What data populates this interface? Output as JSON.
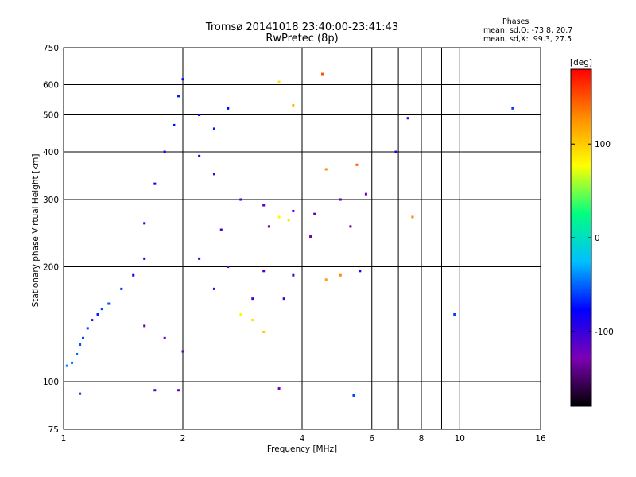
{
  "header": {
    "title_line1": "Tromsø 20141018 23:40:00-23:41:43",
    "title_line2": "RwPretec (8p)",
    "phases_heading": "Phases",
    "phases_o": "mean, sd,O: -73.8, 20.7",
    "phases_x": "mean, sd,X:  99.3, 27.5"
  },
  "chart_data": {
    "type": "scatter",
    "xlabel": "Frequency [MHz]",
    "ylabel": "Stationary phase Virtual Height [km]",
    "x_scale": "log",
    "y_scale": "log",
    "xlim": [
      1,
      16
    ],
    "ylim": [
      75,
      750
    ],
    "x_ticks": [
      1,
      2,
      4,
      6,
      8,
      10,
      16
    ],
    "x_tick_labels": [
      "1",
      "2",
      "4",
      "6",
      "8",
      "10",
      "16"
    ],
    "x_gridlines": [
      2,
      4,
      6,
      7,
      8,
      9,
      10
    ],
    "y_ticks": [
      75,
      100,
      200,
      300,
      400,
      500,
      600,
      750
    ],
    "y_tick_labels": [
      "75",
      "100",
      "200",
      "300",
      "400",
      "500",
      "600",
      "750"
    ],
    "grid": true,
    "colorbar": {
      "label": "[deg]",
      "range": [
        -180,
        180
      ],
      "ticks": [
        100,
        0,
        -100
      ],
      "tick_labels": [
        "100",
        "0",
        "-100"
      ],
      "colors": [
        "#000000",
        "#7c00b4",
        "#0000ff",
        "#00bfff",
        "#00ff80",
        "#ffff00",
        "#ff8c00",
        "#ff0000"
      ]
    },
    "series": [
      {
        "values": [
          {
            "x": 1.02,
            "y": 110,
            "v": -40
          },
          {
            "x": 1.05,
            "y": 112,
            "v": -45
          },
          {
            "x": 1.08,
            "y": 118,
            "v": -50
          },
          {
            "x": 1.1,
            "y": 125,
            "v": -55
          },
          {
            "x": 1.12,
            "y": 130,
            "v": -60
          },
          {
            "x": 1.15,
            "y": 138,
            "v": -60
          },
          {
            "x": 1.18,
            "y": 145,
            "v": -65
          },
          {
            "x": 1.22,
            "y": 150,
            "v": -70
          },
          {
            "x": 1.25,
            "y": 155,
            "v": -60
          },
          {
            "x": 1.3,
            "y": 160,
            "v": -55
          },
          {
            "x": 1.4,
            "y": 175,
            "v": -65
          },
          {
            "x": 1.5,
            "y": 190,
            "v": -80
          },
          {
            "x": 1.6,
            "y": 210,
            "v": -90
          },
          {
            "x": 1.6,
            "y": 260,
            "v": -90
          },
          {
            "x": 1.7,
            "y": 330,
            "v": -85
          },
          {
            "x": 1.8,
            "y": 400,
            "v": -80
          },
          {
            "x": 1.9,
            "y": 470,
            "v": -75
          },
          {
            "x": 1.95,
            "y": 560,
            "v": -70
          },
          {
            "x": 2.0,
            "y": 620,
            "v": -75
          },
          {
            "x": 2.2,
            "y": 500,
            "v": -80
          },
          {
            "x": 2.4,
            "y": 460,
            "v": -70
          },
          {
            "x": 2.6,
            "y": 520,
            "v": -75
          },
          {
            "x": 2.2,
            "y": 390,
            "v": -95
          },
          {
            "x": 2.4,
            "y": 350,
            "v": -100
          },
          {
            "x": 2.8,
            "y": 300,
            "v": -110
          },
          {
            "x": 3.2,
            "y": 290,
            "v": -115
          },
          {
            "x": 3.8,
            "y": 280,
            "v": -105
          },
          {
            "x": 4.3,
            "y": 275,
            "v": -120
          },
          {
            "x": 5.0,
            "y": 300,
            "v": -110
          },
          {
            "x": 5.8,
            "y": 310,
            "v": -120
          },
          {
            "x": 2.5,
            "y": 250,
            "v": -105
          },
          {
            "x": 3.3,
            "y": 255,
            "v": -135
          },
          {
            "x": 4.2,
            "y": 240,
            "v": -130
          },
          {
            "x": 5.3,
            "y": 255,
            "v": -140
          },
          {
            "x": 3.5,
            "y": 270,
            "v": 80
          },
          {
            "x": 3.7,
            "y": 265,
            "v": 90
          },
          {
            "x": 2.2,
            "y": 210,
            "v": -110
          },
          {
            "x": 2.6,
            "y": 200,
            "v": -115
          },
          {
            "x": 3.2,
            "y": 195,
            "v": -110
          },
          {
            "x": 3.8,
            "y": 190,
            "v": -105
          },
          {
            "x": 4.6,
            "y": 185,
            "v": 120
          },
          {
            "x": 5.0,
            "y": 190,
            "v": 130
          },
          {
            "x": 5.6,
            "y": 195,
            "v": -90
          },
          {
            "x": 2.4,
            "y": 175,
            "v": -105
          },
          {
            "x": 3.0,
            "y": 165,
            "v": -110
          },
          {
            "x": 3.6,
            "y": 165,
            "v": -105
          },
          {
            "x": 2.8,
            "y": 150,
            "v": 80
          },
          {
            "x": 3.0,
            "y": 145,
            "v": 90
          },
          {
            "x": 3.2,
            "y": 135,
            "v": 100
          },
          {
            "x": 2.0,
            "y": 120,
            "v": -115
          },
          {
            "x": 1.8,
            "y": 130,
            "v": -120
          },
          {
            "x": 1.6,
            "y": 140,
            "v": -125
          },
          {
            "x": 1.1,
            "y": 93,
            "v": -60
          },
          {
            "x": 1.7,
            "y": 95,
            "v": -110
          },
          {
            "x": 1.95,
            "y": 95,
            "v": -120
          },
          {
            "x": 3.5,
            "y": 96,
            "v": -130
          },
          {
            "x": 5.4,
            "y": 92,
            "v": -60
          },
          {
            "x": 4.5,
            "y": 640,
            "v": 150
          },
          {
            "x": 3.8,
            "y": 530,
            "v": 110
          },
          {
            "x": 3.5,
            "y": 610,
            "v": 90
          },
          {
            "x": 5.5,
            "y": 370,
            "v": 145
          },
          {
            "x": 4.6,
            "y": 360,
            "v": 130
          },
          {
            "x": 7.6,
            "y": 270,
            "v": 130
          },
          {
            "x": 7.4,
            "y": 490,
            "v": -90
          },
          {
            "x": 13.6,
            "y": 520,
            "v": -60
          },
          {
            "x": 9.7,
            "y": 150,
            "v": -60
          },
          {
            "x": 6.9,
            "y": 400,
            "v": -90
          }
        ]
      }
    ]
  }
}
